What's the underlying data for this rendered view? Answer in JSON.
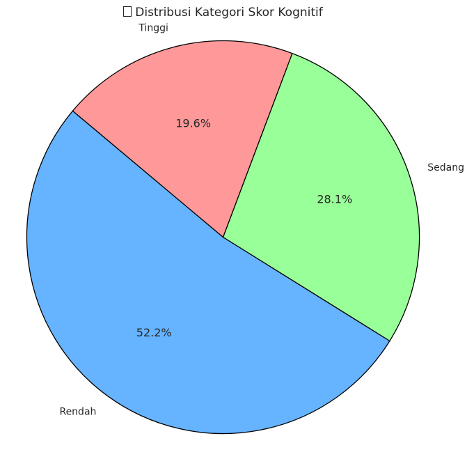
{
  "chart_data": {
    "type": "pie",
    "title": "Distribusi Kategori Skor Kognitif",
    "title_icon": "missing-glyph-box",
    "categories": [
      "Rendah",
      "Sedang",
      "Tinggi"
    ],
    "values": [
      52.2,
      28.1,
      19.6
    ],
    "value_labels": [
      "52.2%",
      "28.1%",
      "19.6%"
    ],
    "colors": [
      "#66b3ff",
      "#99ff99",
      "#ff9999"
    ],
    "start_angle_deg": 140,
    "direction": "counterclockwise",
    "edge_color": "#000000"
  }
}
